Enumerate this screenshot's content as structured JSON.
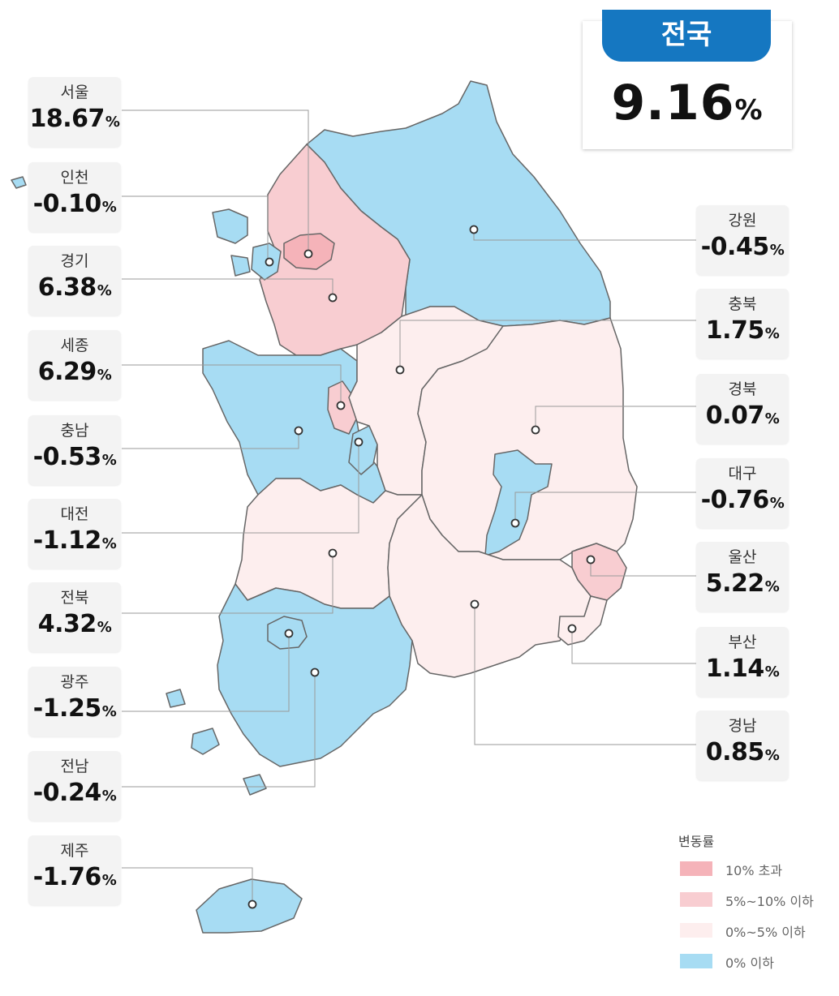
{
  "national": {
    "label": "전국",
    "value": "9.16",
    "unit": "%"
  },
  "colors": {
    "over10": "#f5b3b9",
    "5to10": "#f8cdd1",
    "0to5": "#fdeeee",
    "below0": "#a7dcf3",
    "border": "#666666",
    "leader": "#9a9a9a",
    "tab": "#1577c1"
  },
  "regions": [
    {
      "name": "서울",
      "value": "18.67",
      "unit": "%"
    },
    {
      "name": "인천",
      "value": "-0.10",
      "unit": "%"
    },
    {
      "name": "경기",
      "value": "6.38",
      "unit": "%"
    },
    {
      "name": "세종",
      "value": "6.29",
      "unit": "%"
    },
    {
      "name": "충남",
      "value": "-0.53",
      "unit": "%"
    },
    {
      "name": "대전",
      "value": "-1.12",
      "unit": "%"
    },
    {
      "name": "전북",
      "value": "4.32",
      "unit": "%"
    },
    {
      "name": "광주",
      "value": "-1.25",
      "unit": "%"
    },
    {
      "name": "전남",
      "value": "-0.24",
      "unit": "%"
    },
    {
      "name": "제주",
      "value": "-1.76",
      "unit": "%"
    },
    {
      "name": "강원",
      "value": "-0.45",
      "unit": "%"
    },
    {
      "name": "충북",
      "value": "1.75",
      "unit": "%"
    },
    {
      "name": "경북",
      "value": "0.07",
      "unit": "%"
    },
    {
      "name": "대구",
      "value": "-0.76",
      "unit": "%"
    },
    {
      "name": "울산",
      "value": "5.22",
      "unit": "%"
    },
    {
      "name": "부산",
      "value": "1.14",
      "unit": "%"
    },
    {
      "name": "경남",
      "value": "0.85",
      "unit": "%"
    }
  ],
  "legend": {
    "title": "변동률",
    "items": [
      {
        "label": "10% 초과",
        "color": "#f5b3b9"
      },
      {
        "label": "5%~10% 이하",
        "color": "#f8cdd1"
      },
      {
        "label": "0%~5% 이하",
        "color": "#fdeeee"
      },
      {
        "label": "0% 이하",
        "color": "#a7dcf3"
      }
    ]
  }
}
